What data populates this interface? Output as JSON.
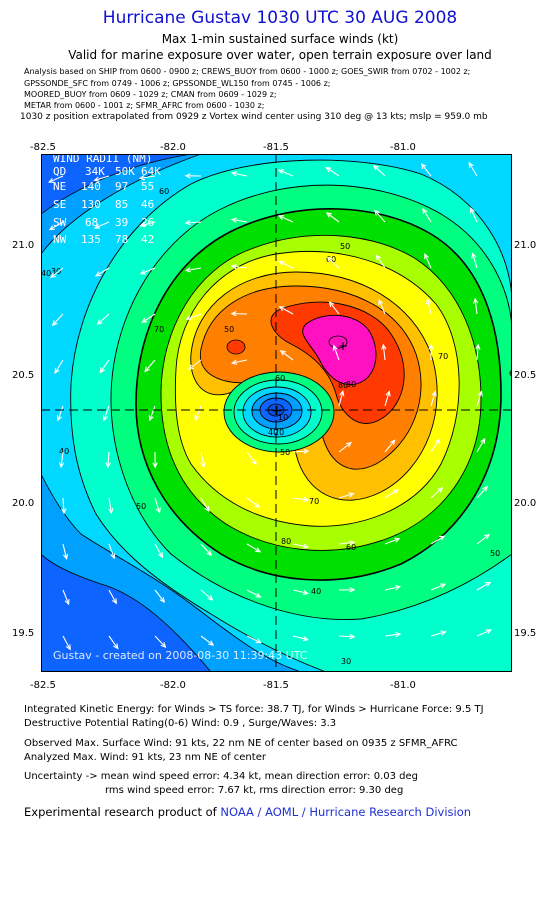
{
  "header": {
    "title": "Hurricane Gustav 1030 UTC 30 AUG 2008",
    "subtitle1": "Max 1-min sustained surface winds (kt)",
    "subtitle2": "Valid for marine exposure over water, open terrain exposure over land"
  },
  "analysis_lines": [
    "Analysis based on   SHIP from 0600 - 0900 z;  CREWS_BUOY from 0600 - 1000 z;  GOES_SWIR from 0702 - 1002 z;",
    "GPSSONDE_SFC from 0749 - 1006 z;  GPSSONDE_WL150 from 0745 - 1006 z;",
    "MOORED_BUOY from 0609 - 1029 z;  CMAN from 0609 - 1029 z;",
    "METAR from 0600 - 1001 z;  SFMR_AFRC from 0600 - 1030 z;"
  ],
  "position_line": "1030 z position extrapolated from 0929 z Vortex wind center using 310 deg @ 13 kts; mslp = 959.0 mb",
  "map": {
    "lon_ticks": [
      "-82.5",
      "-82.0",
      "-81.5",
      "-81.0"
    ],
    "lat_ticks": [
      "21.0",
      "20.5",
      "20.0",
      "19.5"
    ],
    "contour_labels": [
      "30",
      "40",
      "50",
      "60",
      "70",
      "80",
      "50",
      "60",
      "70",
      "80",
      "60",
      "50",
      "40",
      "30",
      "20",
      "10",
      "40",
      "50",
      "60",
      "70",
      "80",
      "60",
      "50",
      "40"
    ],
    "wind_radii": {
      "title": "WIND RADII (NM)",
      "header": [
        "QD",
        "34K",
        "50K",
        "64K"
      ],
      "rows": [
        [
          "NE",
          "140",
          "97",
          "55"
        ],
        [
          "SE",
          "130",
          "85",
          "46"
        ],
        [
          "SW",
          "68",
          "39",
          "26"
        ],
        [
          "NW",
          "135",
          "78",
          "42"
        ]
      ]
    },
    "watermark": "Gustav - created on 2008-08-30 11:39:43 UTC",
    "colors": {
      "ring_colors": [
        "#0d64ff",
        "#00a0ff",
        "#00d8ff",
        "#00ffcc",
        "#00ff80",
        "#00e000",
        "#a8ff00",
        "#ffff00",
        "#ffc000",
        "#ff8000",
        "#ff3a00",
        "#ff10c0"
      ],
      "contour_line": "#000000",
      "vector": "#ffffff"
    },
    "center_marker": "+",
    "max_wind_marker": "+"
  },
  "stats": {
    "ike": "Integrated Kinetic Energy:  for Winds > TS force: 38.7 TJ,  for Winds > Hurricane Force: 9.5 TJ",
    "dpr": "Destructive Potential Rating(0-6)   Wind: 0.9 , Surge/Waves: 3.3",
    "obs_max": "Observed Max. Surface Wind: 91 kts, 22 nm NE of center based on 0935 z SFMR_AFRC",
    "ana_max": "Analyzed Max. Wind: 91 kts, 23 nm NE of center",
    "unc1": "Uncertainty -> mean wind speed error: 4.34 kt,   mean direction error: 0.03 deg",
    "unc2": "rms wind speed error: 7.67 kt,   rms direction error: 9.30 deg"
  },
  "credit": {
    "prefix": "Experimental research product of ",
    "org": "NOAA / AOML / Hurricane Research Division"
  }
}
